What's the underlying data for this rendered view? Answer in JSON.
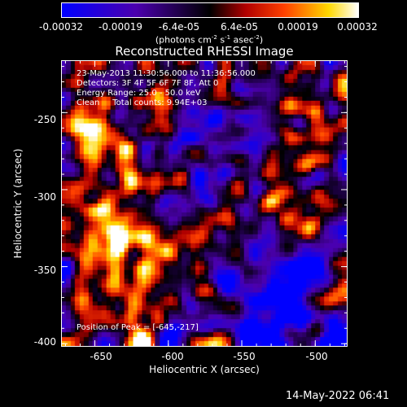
{
  "chart_data": {
    "type": "heatmap",
    "title": "Reconstructed RHESSI Image",
    "xlabel": "Heliocentric X (arcsec)",
    "ylabel": "Heliocentric Y (arcsec)",
    "xlim": [
      -673,
      -478
    ],
    "ylim": [
      -402,
      -216
    ],
    "x_ticks": [
      "-650",
      "-600",
      "-550",
      "-500"
    ],
    "x_tick_values": [
      -650,
      -600,
      -550,
      -500
    ],
    "y_ticks": [
      "-250",
      "-300",
      "-350",
      "-400"
    ],
    "y_tick_values": [
      -250,
      -300,
      -350,
      -400
    ],
    "colorbar": {
      "ticks": [
        "-0.00032",
        "-0.00019",
        "-6.4e-05",
        "6.4e-05",
        "0.00019",
        "0.00032"
      ],
      "tick_values": [
        -0.00032,
        -0.00019,
        -6.4e-05,
        6.4e-05,
        0.00019,
        0.00032
      ],
      "range": [
        -0.00032,
        0.00032
      ],
      "unit_base": "(photons cm",
      "unit_exp1": "-2",
      "unit_mid": " s",
      "unit_exp2": "-1",
      "unit_mid2": " asec",
      "unit_exp3": "-2",
      "unit_end": ")"
    },
    "colors": {
      "low": "#0000ff",
      "mid": "#000000",
      "high1": "#ff0000",
      "high2": "#ffff00",
      "top": "#ffffff"
    },
    "annotations": {
      "time": "23-May-2013 11:30:56.000 to 11:36:56.000",
      "detectors": "Detectors: 3F 4F 5F 6F 7F 8F, Att 0",
      "energy": "Energy Range: 25.0 - 50.0 keV",
      "clean": "Clean     Total counts: 9.94E+03",
      "peak": "Position of Peak = [-645,-217]"
    },
    "peak_position": [
      -645,
      -217
    ]
  },
  "footer_timestamp": "14-May-2022 06:41"
}
